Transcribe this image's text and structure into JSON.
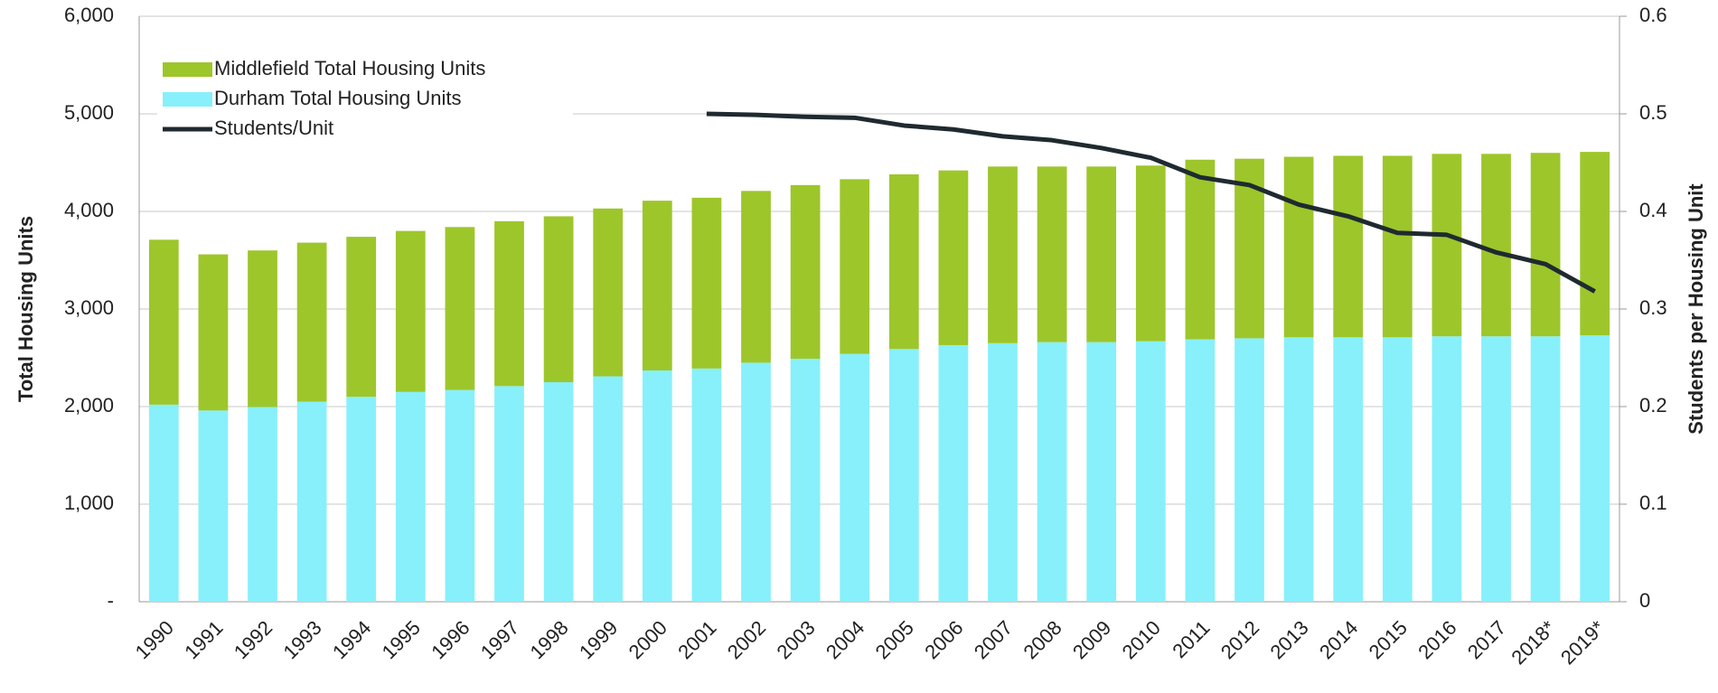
{
  "chart_data": {
    "type": "bar",
    "categories": [
      "1990",
      "1991",
      "1992",
      "1993",
      "1994",
      "1995",
      "1996",
      "1997",
      "1998",
      "1999",
      "2000",
      "2001",
      "2002",
      "2003",
      "2004",
      "2005",
      "2006",
      "2007",
      "2008",
      "2009",
      "2010",
      "2011",
      "2012",
      "2013",
      "2014",
      "2015",
      "2016",
      "2017",
      "2018*",
      "2019*"
    ],
    "series": [
      {
        "name": "Durham Total Housing Units",
        "color": "#87f0fb",
        "type": "bar",
        "values": [
          2020,
          1960,
          1995,
          2050,
          2100,
          2150,
          2170,
          2210,
          2250,
          2310,
          2370,
          2390,
          2450,
          2490,
          2540,
          2590,
          2630,
          2650,
          2660,
          2660,
          2670,
          2690,
          2700,
          2710,
          2710,
          2710,
          2720,
          2720,
          2720,
          2730
        ]
      },
      {
        "name": "Middlefield Total Housing Units",
        "color": "#9dc62b",
        "type": "bar",
        "values": [
          1690,
          1600,
          1605,
          1630,
          1640,
          1650,
          1670,
          1690,
          1700,
          1720,
          1740,
          1750,
          1760,
          1780,
          1790,
          1790,
          1790,
          1810,
          1800,
          1800,
          1800,
          1840,
          1840,
          1850,
          1860,
          1860,
          1870,
          1870,
          1880,
          1880
        ]
      },
      {
        "name": "Students/Unit",
        "color": "#1f2a30",
        "type": "line",
        "axis": "y2",
        "values": [
          null,
          null,
          null,
          null,
          null,
          null,
          null,
          null,
          null,
          null,
          null,
          0.5,
          0.499,
          0.497,
          0.496,
          0.488,
          0.484,
          0.477,
          0.473,
          0.465,
          0.455,
          0.435,
          0.427,
          0.407,
          0.395,
          0.378,
          0.376,
          0.358,
          0.346,
          0.318
        ]
      }
    ],
    "stacked": true,
    "y_label": "Total Housing Units",
    "y2_label": "Students per Housing Unit",
    "ylim": [
      0,
      6000
    ],
    "yticks": [
      {
        "value": 0,
        "label": "-"
      },
      {
        "value": 1000,
        "label": "1,000"
      },
      {
        "value": 2000,
        "label": "2,000"
      },
      {
        "value": 3000,
        "label": "3,000"
      },
      {
        "value": 4000,
        "label": "4,000"
      },
      {
        "value": 5000,
        "label": "5,000"
      },
      {
        "value": 6000,
        "label": "6,000"
      }
    ],
    "y2lim": [
      0,
      0.6
    ],
    "y2ticks": [
      0,
      0.1,
      0.2,
      0.3,
      0.4,
      0.5,
      0.6
    ],
    "grid": true,
    "legend": "top-left"
  }
}
